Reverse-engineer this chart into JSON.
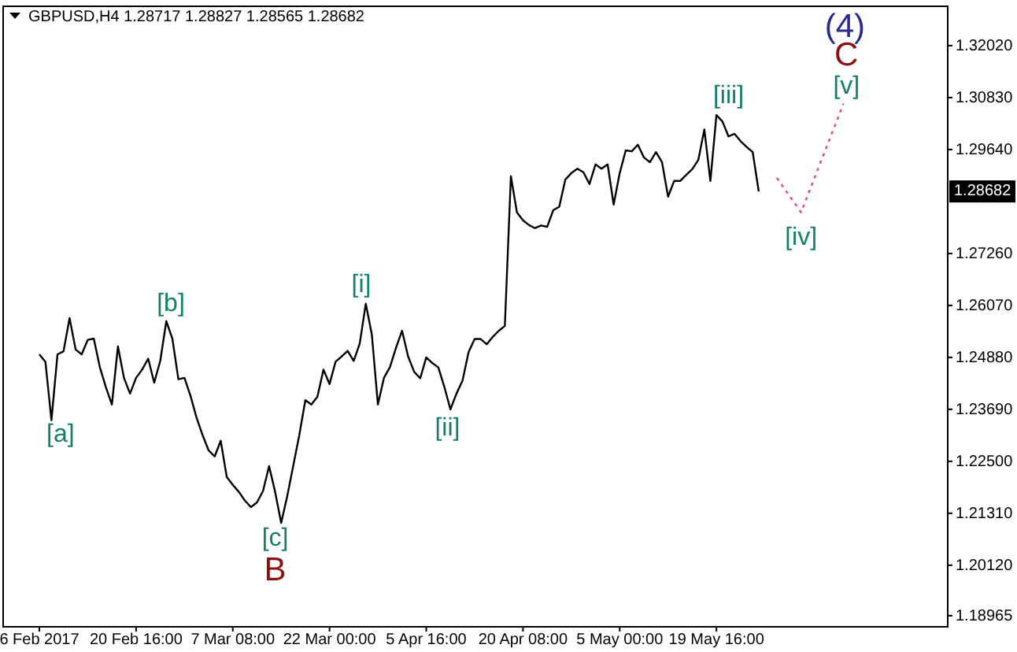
{
  "chart_data": {
    "type": "line",
    "title": "GBPUSD,H4  1.28717 1.28827 1.28565 1.28682",
    "categories": [
      "6 Feb 2017",
      null,
      null,
      null,
      null,
      null,
      null,
      null,
      null,
      null,
      null,
      null,
      null,
      null,
      null,
      null,
      "20 Feb 16:00",
      null,
      null,
      null,
      null,
      null,
      null,
      null,
      null,
      null,
      null,
      null,
      null,
      null,
      null,
      null,
      "7 Mar 08:00",
      null,
      null,
      null,
      null,
      null,
      null,
      null,
      null,
      null,
      null,
      null,
      null,
      null,
      null,
      null,
      "22 Mar 00:00",
      null,
      null,
      null,
      null,
      null,
      null,
      null,
      null,
      null,
      null,
      null,
      null,
      null,
      null,
      null,
      "5 Apr 16:00",
      null,
      null,
      null,
      null,
      null,
      null,
      null,
      null,
      null,
      null,
      null,
      null,
      null,
      null,
      null,
      "20 Apr 08:00",
      null,
      null,
      null,
      null,
      null,
      null,
      null,
      null,
      null,
      null,
      null,
      null,
      null,
      null,
      null,
      "5 May 00:00",
      null,
      null,
      null,
      null,
      null,
      null,
      null,
      null,
      null,
      null,
      null,
      null,
      null,
      null,
      null,
      "19 May 16:00",
      null,
      null,
      null,
      null,
      null,
      null,
      null,
      null,
      null,
      null,
      null,
      null,
      null,
      null,
      null,
      null,
      null,
      null,
      null,
      null,
      null,
      null,
      null,
      null,
      null,
      null,
      null,
      null,
      null,
      null,
      null,
      null,
      null,
      null,
      null,
      null,
      null,
      null
    ],
    "ylim": [
      1.1871,
      1.3292
    ],
    "yticks": [
      {
        "value": 1.18965,
        "label": "1.18965"
      },
      {
        "value": 1.2012,
        "label": "1.20120"
      },
      {
        "value": 1.2131,
        "label": "1.21310"
      },
      {
        "value": 1.225,
        "label": "1.22500"
      },
      {
        "value": 1.2369,
        "label": "1.23690"
      },
      {
        "value": 1.2488,
        "label": "1.24880"
      },
      {
        "value": 1.2607,
        "label": "1.26070"
      },
      {
        "value": 1.2726,
        "label": "1.27260"
      },
      {
        "value": 1.2964,
        "label": "1.29640"
      },
      {
        "value": 1.3083,
        "label": "1.30830"
      },
      {
        "value": 1.3202,
        "label": "1.32020"
      }
    ],
    "grid": false,
    "series": [
      {
        "color": "#000000",
        "line_style": "solid",
        "values": [
          1.2495,
          1.2478,
          1.2344,
          1.2495,
          1.2502,
          1.2578,
          1.2506,
          1.2495,
          1.2528,
          1.2531,
          1.2466,
          1.242,
          1.238,
          1.2513,
          1.2441,
          1.2405,
          1.2441,
          1.246,
          1.2485,
          1.243,
          1.248,
          1.2571,
          1.2531,
          1.2438,
          1.2441,
          1.24,
          1.235,
          1.231,
          1.2275,
          1.2261,
          1.2297,
          1.2214,
          1.2196,
          1.218,
          1.216,
          1.2145,
          1.2156,
          1.2182,
          1.2239,
          1.218,
          1.2109,
          1.217,
          1.224,
          1.231,
          1.239,
          1.238,
          1.2398,
          1.246,
          1.2427,
          1.2478,
          1.249,
          1.2503,
          1.248,
          1.252,
          1.2611,
          1.254,
          1.238,
          1.2441,
          1.2466,
          1.251,
          1.2549,
          1.249,
          1.2455,
          1.244,
          1.2488,
          1.2475,
          1.2465,
          1.242,
          1.2369,
          1.2405,
          1.2435,
          1.25,
          1.253,
          1.253,
          1.2518,
          1.2535,
          1.2549,
          1.256,
          1.2903,
          1.282,
          1.2802,
          1.2791,
          1.2784,
          1.279,
          1.2787,
          1.2825,
          1.2833,
          1.2895,
          1.291,
          1.292,
          1.2912,
          1.2885,
          1.293,
          1.292,
          1.293,
          1.2838,
          1.291,
          1.2962,
          1.296,
          1.2975,
          1.2946,
          1.2935,
          1.2958,
          1.2935,
          1.2856,
          1.2892,
          1.2892,
          1.2906,
          1.2919,
          1.294,
          1.301,
          1.2892,
          1.3043,
          1.3028,
          1.2994,
          1.3,
          1.2983,
          1.297,
          1.2958,
          1.2868,
          null,
          null,
          null,
          null,
          null,
          null,
          null,
          null,
          null,
          null,
          null,
          null,
          null,
          null,
          null,
          null,
          null,
          null,
          null,
          null,
          null,
          null,
          null,
          null,
          null,
          null,
          null,
          null,
          null,
          null,
          null
        ]
      },
      {
        "color": "#e8457f",
        "line_style": "dotted",
        "values": [
          null,
          null,
          null,
          null,
          null,
          null,
          null,
          null,
          null,
          null,
          null,
          null,
          null,
          null,
          null,
          null,
          null,
          null,
          null,
          null,
          null,
          null,
          null,
          null,
          null,
          null,
          null,
          null,
          null,
          null,
          null,
          null,
          null,
          null,
          null,
          null,
          null,
          null,
          null,
          null,
          null,
          null,
          null,
          null,
          null,
          null,
          null,
          null,
          null,
          null,
          null,
          null,
          null,
          null,
          null,
          null,
          null,
          null,
          null,
          null,
          null,
          null,
          null,
          null,
          null,
          null,
          null,
          null,
          null,
          null,
          null,
          null,
          null,
          null,
          null,
          null,
          null,
          null,
          null,
          null,
          null,
          null,
          null,
          null,
          null,
          null,
          null,
          null,
          null,
          null,
          null,
          null,
          null,
          null,
          null,
          null,
          null,
          null,
          null,
          null,
          null,
          null,
          null,
          null,
          null,
          null,
          null,
          null,
          null,
          null,
          null,
          null,
          null,
          null,
          null,
          null,
          null,
          null,
          null,
          null,
          null,
          null,
          1.2899,
          1.2879,
          1.2859,
          1.284,
          1.282,
          1.2856,
          1.2891,
          1.2927,
          1.2962,
          1.2998,
          1.3033,
          1.3069,
          null,
          null,
          null,
          null,
          null,
          null,
          null,
          null,
          null,
          null,
          null,
          null,
          null,
          null,
          null,
          null,
          null
        ]
      }
    ],
    "annotations": [
      "[a]",
      "[b]",
      "[c]",
      "B",
      "[i]",
      "[ii]",
      "[iii]",
      "[iv]",
      "[v]",
      "C",
      "(4)",
      "1.28682"
    ]
  }
}
